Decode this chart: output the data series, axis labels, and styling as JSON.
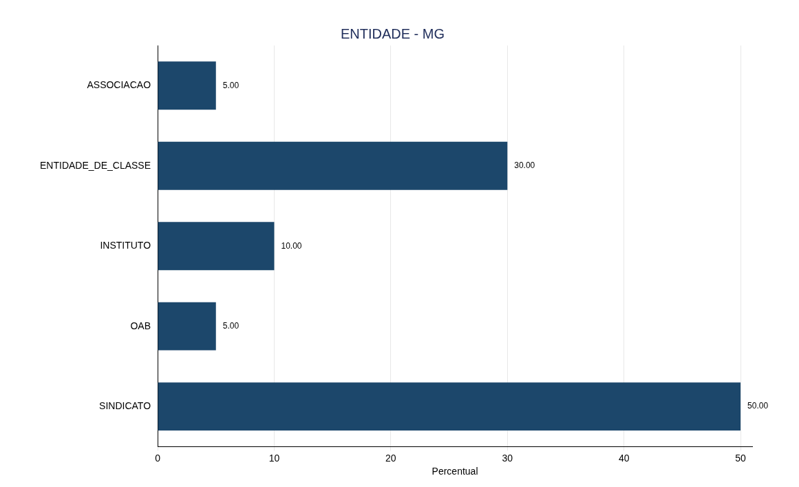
{
  "chart_data": {
    "type": "bar",
    "orientation": "horizontal",
    "title": "ENTIDADE - MG",
    "xlabel": "Percentual",
    "categories": [
      "ASSOCIACAO",
      "ENTIDADE_DE_CLASSE",
      "INSTITUTO",
      "OAB",
      "SINDICATO"
    ],
    "values": [
      5,
      30,
      10,
      5,
      50
    ],
    "value_labels": [
      "5.00",
      "30.00",
      "10.00",
      "5.00",
      "50.00"
    ],
    "color": "#1c476b",
    "xlim": [
      0,
      51
    ],
    "xticks": [
      0,
      10,
      20,
      30,
      40,
      50
    ],
    "grid": "x",
    "legend": false
  }
}
